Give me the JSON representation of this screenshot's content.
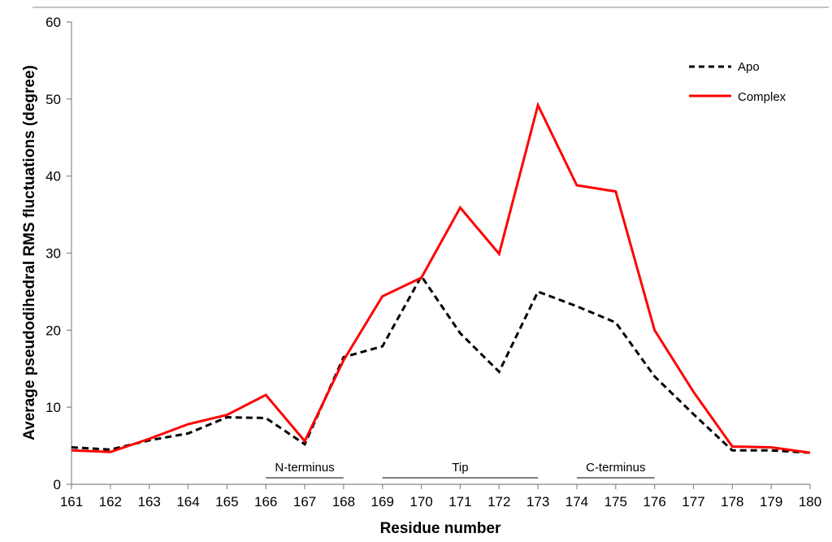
{
  "chart_data": {
    "type": "line",
    "title": "",
    "xlabel": "Residue number",
    "ylabel": "Average pseudodihedral RMS fluctuations (degree)",
    "x": [
      161,
      162,
      163,
      164,
      165,
      166,
      167,
      168,
      169,
      170,
      171,
      172,
      173,
      174,
      175,
      176,
      177,
      178,
      179,
      180
    ],
    "xlim": [
      161,
      180
    ],
    "ylim": [
      0,
      60
    ],
    "yticks": [
      0,
      10,
      20,
      30,
      40,
      50,
      60
    ],
    "grid": false,
    "legend_position": "top-right",
    "series": [
      {
        "name": "Apo",
        "color": "#000000",
        "style": "dashed",
        "values": [
          4.8,
          4.5,
          5.7,
          6.6,
          8.7,
          8.6,
          5.2,
          16.5,
          17.9,
          27.0,
          19.6,
          14.6,
          25.0,
          23.1,
          21.0,
          14.0,
          9.1,
          4.4,
          4.4,
          4.1
        ]
      },
      {
        "name": "Complex",
        "color": "#ff0000",
        "style": "solid",
        "values": [
          4.4,
          4.2,
          5.9,
          7.8,
          9.0,
          11.6,
          5.6,
          16.1,
          24.4,
          26.8,
          35.9,
          29.9,
          49.2,
          38.8,
          38.0,
          20.0,
          12.0,
          4.9,
          4.8,
          4.1
        ]
      }
    ],
    "annotations": [
      {
        "label": "N-terminus",
        "from": 166,
        "to": 168
      },
      {
        "label": "Tip",
        "from": 169,
        "to": 173
      },
      {
        "label": "C-terminus",
        "from": 174,
        "to": 176
      }
    ]
  }
}
